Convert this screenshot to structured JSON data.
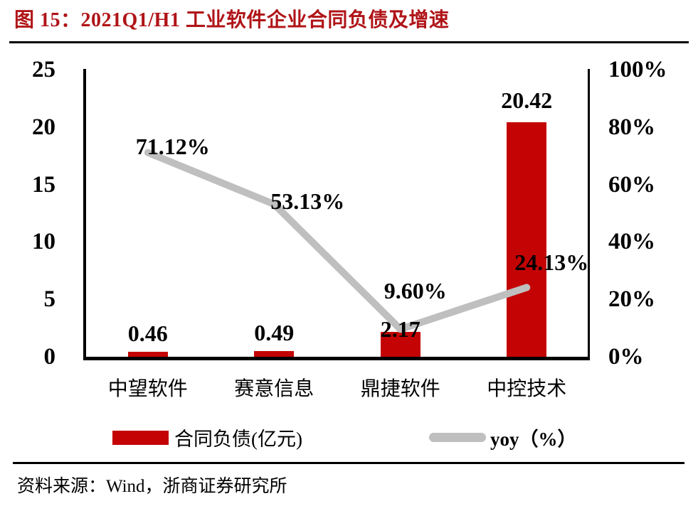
{
  "title": "图 15：2021Q1/H1 工业软件企业合同负债及增速",
  "source": "资料来源：Wind，浙商证券研究所",
  "colors": {
    "title_red": "#B01418",
    "bar_red": "#C40404",
    "line_gray": "#BFBFBF",
    "axis_black": "#000000"
  },
  "legend": [
    {
      "label": "合同负债(亿元)",
      "swatch": "bar",
      "color": "#C40404"
    },
    {
      "label": "yoy（%）",
      "swatch": "line",
      "color": "#BFBFBF"
    }
  ],
  "chart_data": {
    "type": "bar+line combo",
    "categories": [
      "中望软件",
      "赛意信息",
      "鼎捷软件",
      "中控技术"
    ],
    "series": [
      {
        "name": "合同负债(亿元)",
        "type": "bar",
        "axis": "left",
        "values": [
          0.46,
          0.49,
          2.17,
          20.42
        ],
        "labels": [
          "0.46",
          "0.49",
          "2.17",
          "20.42"
        ],
        "color": "#C40404"
      },
      {
        "name": "yoy（%）",
        "type": "line",
        "axis": "right",
        "values": [
          71.12,
          53.13,
          9.6,
          24.13
        ],
        "labels": [
          "71.12%",
          "53.13%",
          "9.60%",
          "24.13%"
        ],
        "color": "#BFBFBF"
      }
    ],
    "left_axis": {
      "min": 0,
      "max": 25,
      "ticks": [
        0,
        5,
        10,
        15,
        20,
        25
      ],
      "tick_labels": [
        "0",
        "5",
        "10",
        "15",
        "20",
        "25"
      ],
      "label": ""
    },
    "right_axis": {
      "min": 0,
      "max": 100,
      "ticks": [
        0,
        20,
        40,
        60,
        80,
        100
      ],
      "tick_labels": [
        "0%",
        "20%",
        "40%",
        "60%",
        "80%",
        "100%"
      ],
      "label": ""
    },
    "grid": false,
    "legend_position": "bottom"
  }
}
